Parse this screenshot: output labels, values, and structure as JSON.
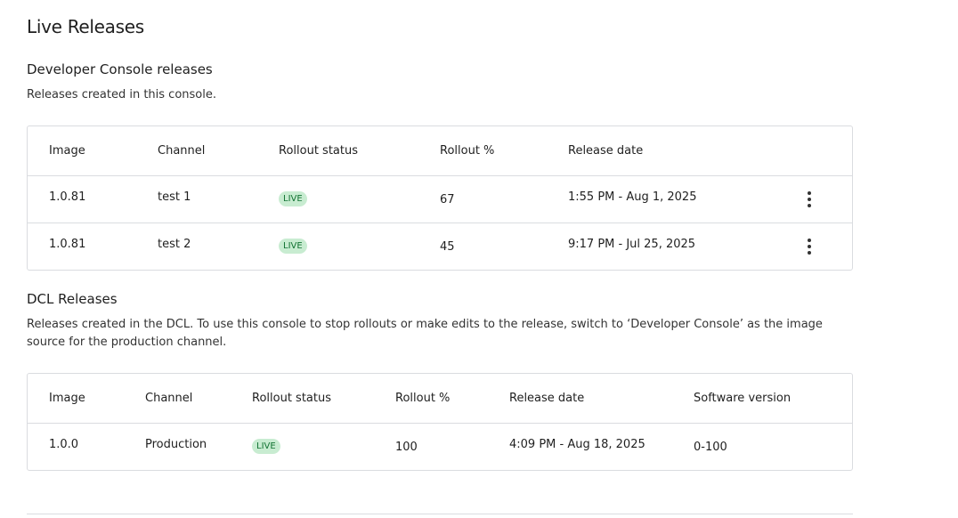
{
  "title": "Live Releases",
  "dev": {
    "heading": "Developer Console releases",
    "description": "Releases created in this console.",
    "columns": [
      "Image",
      "Channel",
      "Rollout status",
      "Rollout %",
      "Release date"
    ],
    "rows": [
      {
        "image": "1.0.81",
        "channel": "test 1",
        "status": "LIVE",
        "rollout": "67",
        "date": "1:55 PM - Aug 1, 2025"
      },
      {
        "image": "1.0.81",
        "channel": "test 2",
        "status": "LIVE",
        "rollout": "45",
        "date": "9:17 PM - Jul 25, 2025"
      }
    ]
  },
  "dcl": {
    "heading": "DCL Releases",
    "description": "Releases created in the DCL. To use this console to stop rollouts or make edits to the release, switch to ‘Developer Console’ as the image source for the production channel.",
    "columns": [
      "Image",
      "Channel",
      "Rollout status",
      "Rollout %",
      "Release date",
      "Software version"
    ],
    "rows": [
      {
        "image": "1.0.0",
        "channel": "Production",
        "status": "LIVE",
        "rollout": "100",
        "date": "4:09 PM - Aug 18, 2025",
        "version": "0-100"
      }
    ]
  },
  "colors": {
    "live_bg": "#c8ecd1",
    "live_text": "#137333"
  }
}
